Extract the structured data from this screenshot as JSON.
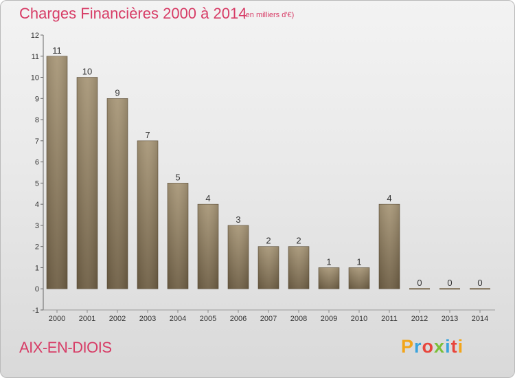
{
  "header": {
    "title": "Charges Financières 2000 à 2014",
    "subtitle": "(en milliers d'€)"
  },
  "footer": {
    "city": "AIX-EN-DIOIS",
    "logo": [
      "P",
      "r",
      "o",
      "x",
      "i",
      "t",
      "i"
    ]
  },
  "colors": {
    "title": "#d73c66",
    "bar_light": "#a89778",
    "bar_dark": "#6e5e44",
    "axis": "#555555",
    "grid": "#cfcfcf"
  },
  "chart_data": {
    "type": "bar",
    "title": "Charges Financières 2000 à 2014",
    "subtitle": "(en milliers d'€)",
    "categories": [
      "2000",
      "2001",
      "2002",
      "2003",
      "2004",
      "2005",
      "2006",
      "2007",
      "2008",
      "2009",
      "2010",
      "2011",
      "2012",
      "2013",
      "2014"
    ],
    "values": [
      11,
      10,
      9,
      7,
      5,
      4,
      3,
      2,
      2,
      1,
      1,
      4,
      0,
      0,
      0
    ],
    "ylim": [
      -1,
      12
    ],
    "yticks": [
      -1,
      0,
      1,
      2,
      3,
      4,
      5,
      6,
      7,
      8,
      9,
      10,
      11,
      12
    ],
    "grid": false,
    "data_labels": true
  }
}
